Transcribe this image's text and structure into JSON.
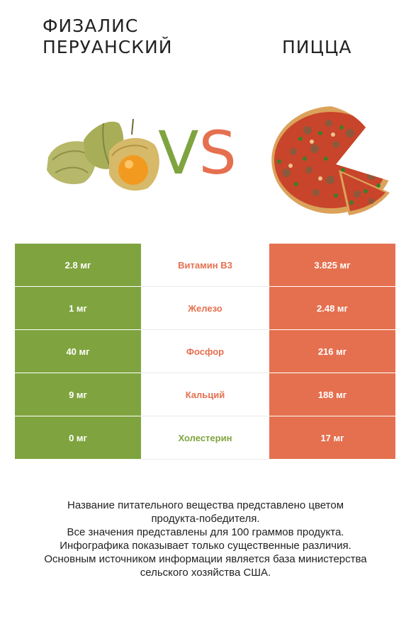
{
  "header": {
    "left_title": "ФИЗАЛИС ПЕРУАНСКИЙ",
    "right_title": "ПИЦЦА",
    "vs_v": "V",
    "vs_s": "S"
  },
  "colors": {
    "left_accent": "#7fa43f",
    "right_accent": "#e5704f"
  },
  "rows": [
    {
      "nutrient": "Витамин B3",
      "left": "2.8 мг",
      "right": "3.825 мг",
      "winner": "right"
    },
    {
      "nutrient": "Железо",
      "left": "1 мг",
      "right": "2.48 мг",
      "winner": "right"
    },
    {
      "nutrient": "Фосфор",
      "left": "40 мг",
      "right": "216 мг",
      "winner": "right"
    },
    {
      "nutrient": "Кальций",
      "left": "9 мг",
      "right": "188 мг",
      "winner": "right"
    },
    {
      "nutrient": "Холестерин",
      "left": "0 мг",
      "right": "17 мг",
      "winner": "left"
    }
  ],
  "footer": {
    "line1": "Название питательного вещества представлено цветом",
    "line2": "продукта-победителя.",
    "line3": "Все значения представлены для 100 граммов продукта.",
    "line4": "Инфографика показывает только существенные различия.",
    "line5": "Основным источником информации является база министерства",
    "line6": "сельского хозяйства США."
  }
}
